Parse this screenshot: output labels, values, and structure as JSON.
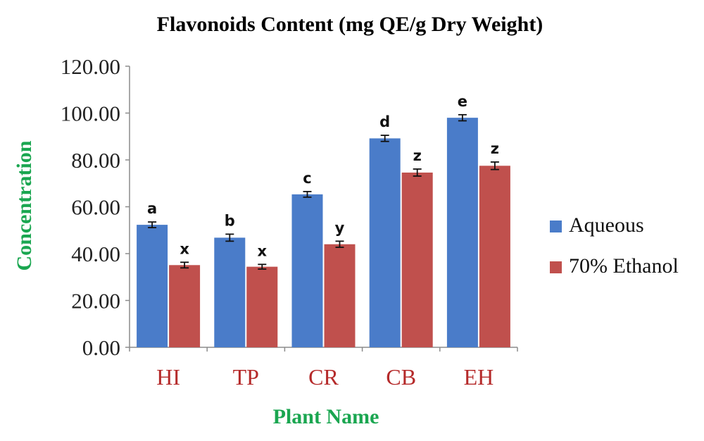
{
  "chart_data": {
    "type": "bar",
    "title": "Flavonoids Content (mg QE/g Dry Weight)",
    "xlabel": "Plant Name",
    "ylabel": "Concentration",
    "ylim": [
      0,
      120
    ],
    "yticks": [
      "0.00",
      "20.00",
      "40.00",
      "60.00",
      "80.00",
      "100.00",
      "120.00"
    ],
    "grid": false,
    "legend_position": "right",
    "categories": [
      "HI",
      "TP",
      "CR",
      "CB",
      "EH"
    ],
    "series": [
      {
        "name": "Aqueous",
        "color": "#4a7cc9",
        "values": [
          52.3,
          46.8,
          65.3,
          89.2,
          98.0
        ],
        "errors": [
          1.2,
          1.5,
          1.2,
          1.3,
          1.3
        ],
        "labels": [
          "a",
          "b",
          "c",
          "d",
          "e"
        ]
      },
      {
        "name": "70% Ethanol",
        "color": "#c0504d",
        "values": [
          35.1,
          34.4,
          44.0,
          74.6,
          77.5
        ],
        "errors": [
          1.2,
          1.0,
          1.3,
          1.5,
          1.6
        ],
        "labels": [
          "x",
          "x",
          "y",
          "z",
          "z"
        ]
      }
    ]
  }
}
